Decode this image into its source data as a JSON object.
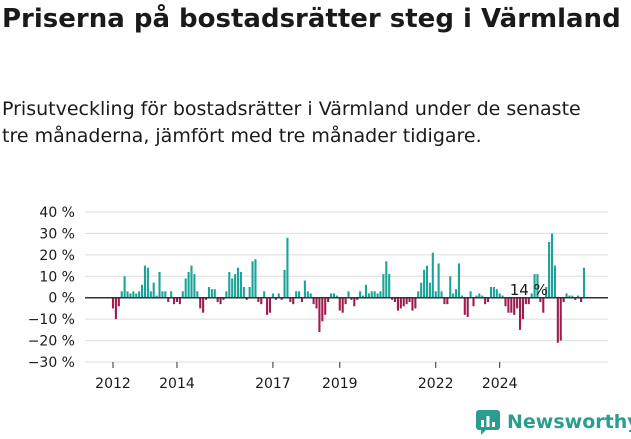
{
  "header": {
    "title": "Priserna på bostadsrätter steg i Värmland",
    "subtitle": "Prisutveckling för bostadsrätter i Värmland under de senaste tre månaderna, jämfört med tre månader tidigare."
  },
  "brand": {
    "name": "Newsworthy"
  },
  "colors": {
    "positive": "#1aa399",
    "negative": "#9e1a4f",
    "grid": "#dddddd",
    "axis": "#333333",
    "brand": "#2a9d8f"
  },
  "chart_data": {
    "type": "bar",
    "title": "Priserna på bostadsrätter steg i Värmland",
    "xlabel": "",
    "ylabel": "",
    "ylim": [
      -30,
      40
    ],
    "y_ticks": [
      40,
      30,
      20,
      10,
      0,
      -10,
      -20,
      -30
    ],
    "y_tick_labels": [
      "40 %",
      "30 %",
      "20 %",
      "10 %",
      "0 %",
      "−10 %",
      "−20 %",
      "−30 %"
    ],
    "x_ticks": [
      {
        "label": "2012",
        "index": 0
      },
      {
        "label": "2014",
        "index": 22
      },
      {
        "label": "2017",
        "index": 55
      },
      {
        "label": "2019",
        "index": 78
      },
      {
        "label": "2022",
        "index": 111
      },
      {
        "label": "2024",
        "index": 133
      }
    ],
    "annotation": {
      "text": "14 %",
      "index": 143
    },
    "values": [
      -5,
      -10,
      -4,
      3,
      10,
      3,
      2,
      3,
      2,
      3,
      6,
      15,
      14,
      3,
      7,
      1,
      12,
      3,
      3,
      -2,
      3,
      -3,
      -2,
      -3,
      3,
      9,
      12,
      15,
      11,
      3,
      -5,
      -7,
      -1,
      5,
      4,
      4,
      -2,
      -3,
      -1,
      3,
      12,
      9,
      11,
      14,
      12,
      5,
      -1,
      5,
      17,
      18,
      -2,
      -3,
      3,
      -8,
      -7,
      2,
      -1,
      2,
      -1,
      13,
      28,
      -2,
      -3,
      3,
      3,
      -2,
      8,
      3,
      2,
      -3,
      -5,
      -16,
      -11,
      -8,
      -2,
      2,
      2,
      1,
      -6,
      -7,
      -3,
      3,
      -1,
      -4,
      -1,
      3,
      1,
      6,
      2,
      3,
      3,
      2,
      3,
      11,
      17,
      11,
      -1,
      -2,
      -6,
      -5,
      -4,
      -3,
      -2,
      -6,
      -5,
      3,
      7,
      13,
      15,
      7,
      21,
      3,
      16,
      3,
      -3,
      -3,
      10,
      2,
      4,
      16,
      1,
      -8,
      -9,
      3,
      -4,
      1,
      2,
      1,
      -3,
      -2,
      5,
      5,
      4,
      2,
      1,
      -4,
      -7,
      -7,
      -8,
      -5,
      -15,
      -10,
      -3,
      -3,
      2,
      11,
      11,
      -2,
      -7,
      5,
      26,
      30,
      15,
      -21,
      -20,
      -2,
      2,
      1,
      1,
      -1,
      1,
      -2,
      14
    ]
  }
}
